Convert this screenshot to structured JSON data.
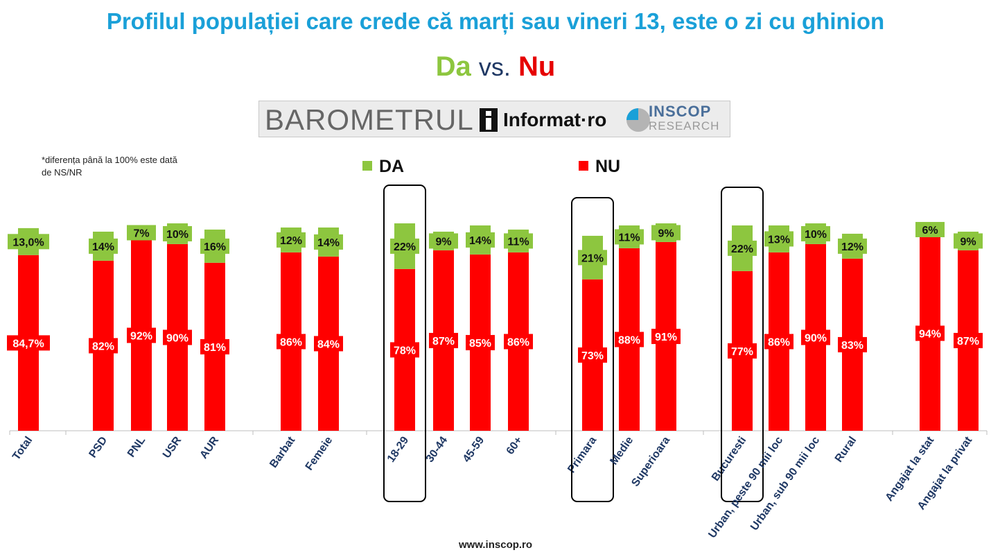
{
  "header": {
    "title": "Profilul populației care crede că marți sau vineri 13, este o zi cu ghinion",
    "subtitle_da": "Da",
    "subtitle_vs": "vs.",
    "subtitle_nu": "Nu"
  },
  "banner": {
    "barometrul": "BAROMETRUL",
    "informat": "Informat·ro",
    "inscop": "INSCOP",
    "research": "RESEARCH"
  },
  "note": "*diferența până la 100% este dată de NS/NR",
  "footer": "www.inscop.ro",
  "colors": {
    "da": "#8dc63f",
    "nu": "#ff0000",
    "title": "#1aa0d8",
    "axis_label": "#1f3864"
  },
  "chart_data": {
    "type": "bar",
    "stacked": true,
    "title": "Profilul populației care crede că marți sau vineri 13, este o zi cu ghinion",
    "ylim": [
      0,
      100
    ],
    "legend": {
      "position": "top-center",
      "entries": [
        "DA",
        "NU"
      ]
    },
    "categories": [
      "Total",
      "PSD",
      "PNL",
      "USR",
      "AUR",
      "Barbat",
      "Femeie",
      "18-29",
      "30-44",
      "45-59",
      "60+",
      "Primara",
      "Medie",
      "Superioara",
      "Bucuresti",
      "Urban, peste 90 mii loc",
      "Urban, sub 90 mii loc",
      "Rural",
      "Angajat la stat",
      "Angajat la privat"
    ],
    "series": [
      {
        "name": "NU",
        "values": [
          84.7,
          82,
          92,
          90,
          81,
          86,
          84,
          78,
          87,
          85,
          86,
          73,
          88,
          91,
          77,
          86,
          90,
          83,
          94,
          87
        ],
        "labels": [
          "84,7%",
          "82%",
          "92%",
          "90%",
          "81%",
          "86%",
          "84%",
          "78%",
          "87%",
          "85%",
          "86%",
          "73%",
          "88%",
          "91%",
          "77%",
          "86%",
          "90%",
          "83%",
          "94%",
          "87%"
        ]
      },
      {
        "name": "DA",
        "values": [
          13.0,
          14,
          7,
          10,
          16,
          12,
          14,
          22,
          9,
          14,
          11,
          21,
          11,
          9,
          22,
          13,
          10,
          12,
          6,
          9
        ],
        "labels": [
          "13,0%",
          "14%",
          "7%",
          "10%",
          "16%",
          "12%",
          "14%",
          "22%",
          "9%",
          "14%",
          "11%",
          "21%",
          "11%",
          "9%",
          "22%",
          "13%",
          "10%",
          "12%",
          "6%",
          "9%"
        ]
      }
    ],
    "highlighted": [
      "18-29",
      "Primara",
      "Bucuresti"
    ]
  }
}
